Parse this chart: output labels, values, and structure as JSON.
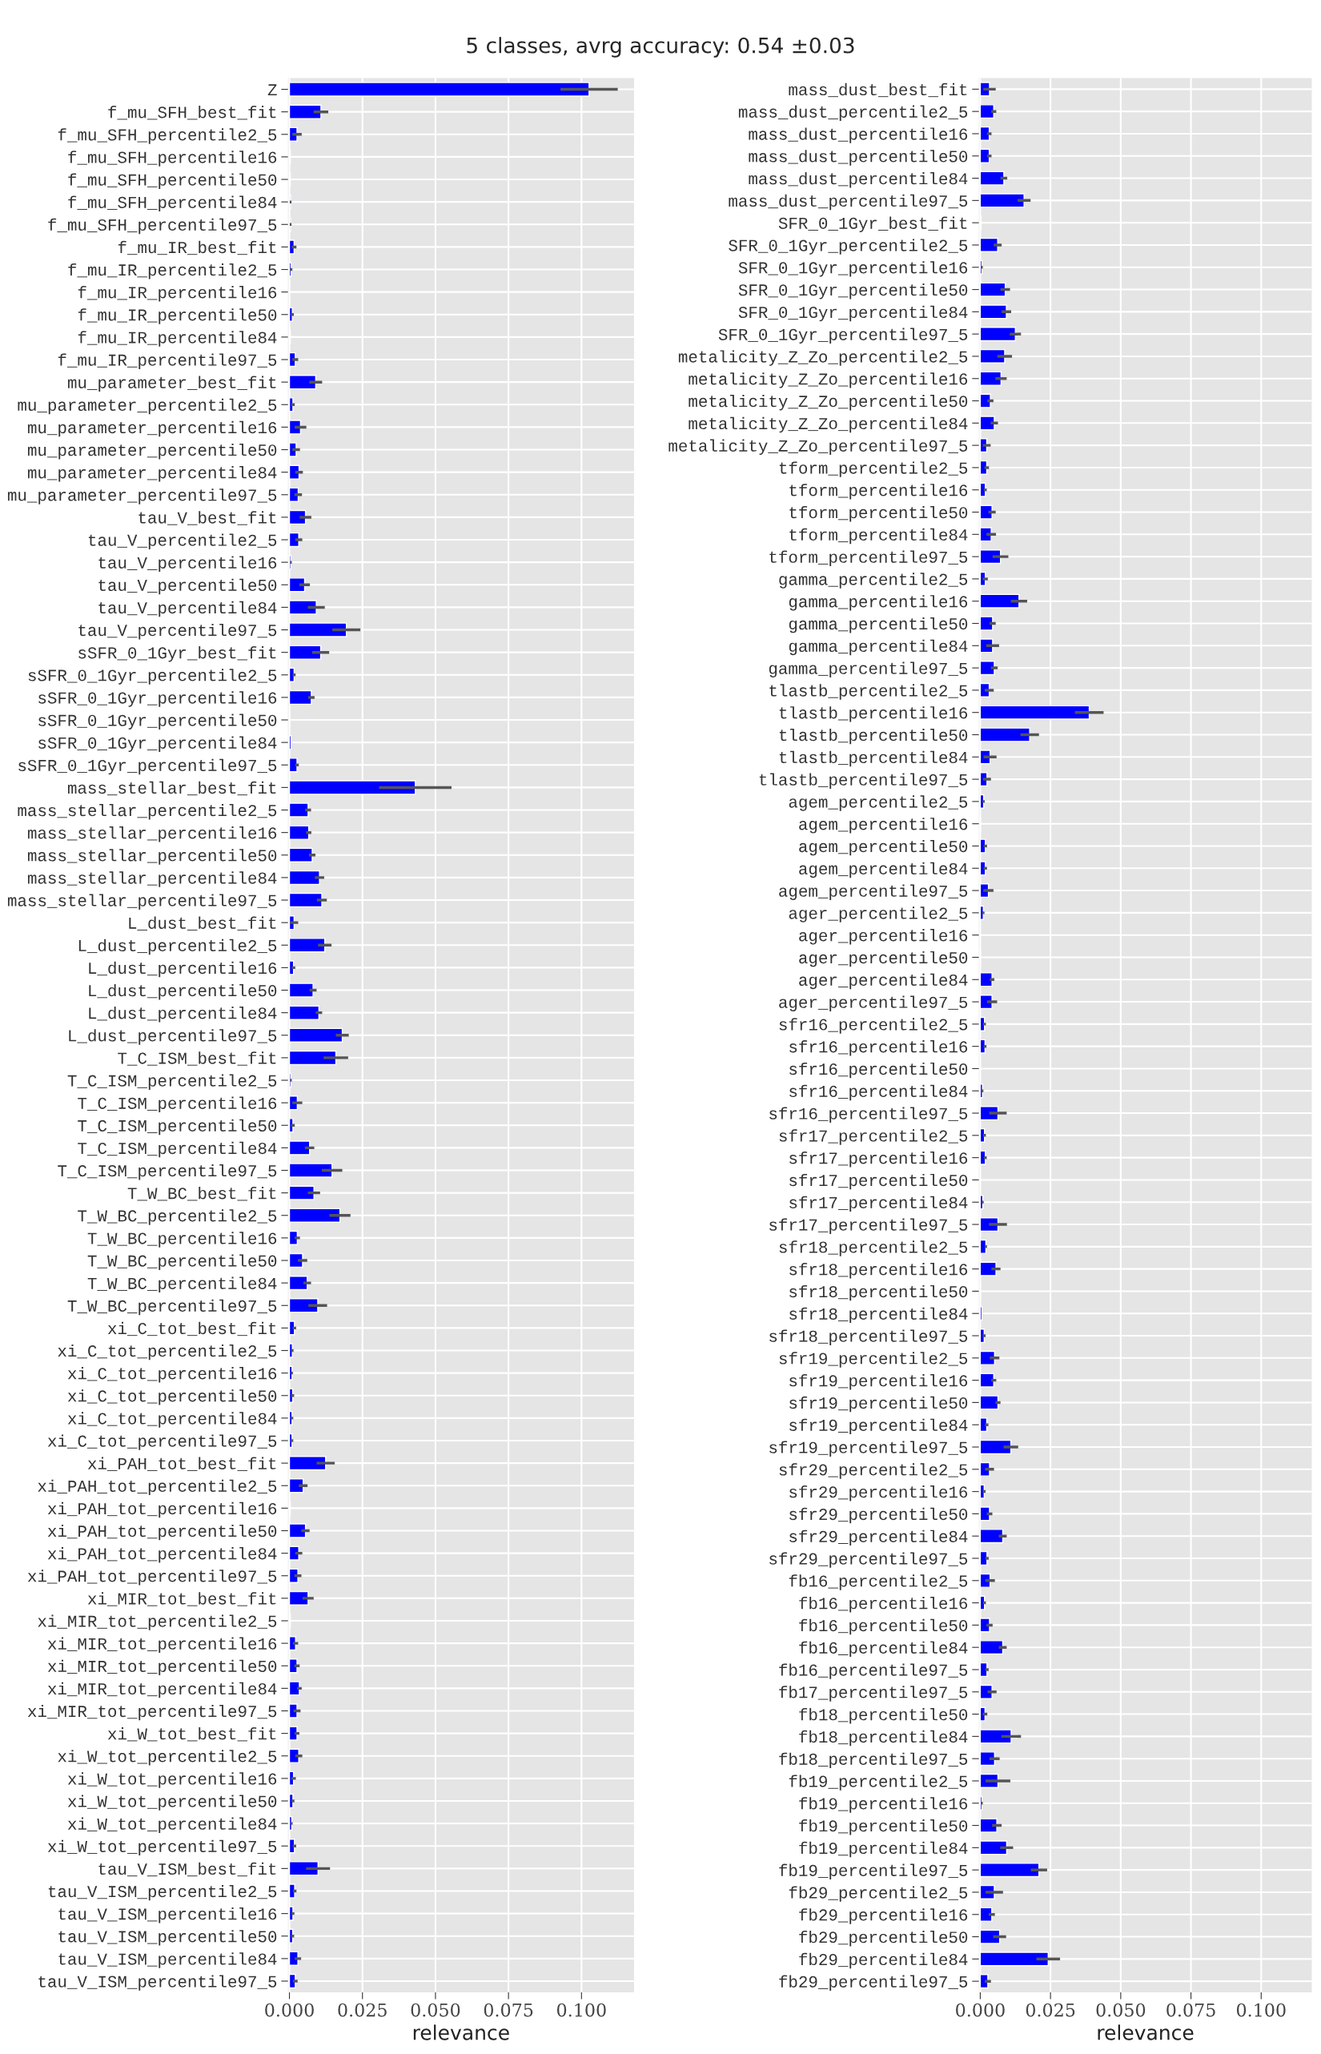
{
  "chart_data": [
    {
      "type": "bar",
      "orientation": "horizontal",
      "title": "5 classes, avrg accuracy: 0.54 ±0.03",
      "xlabel": "relevance",
      "color": "#0000ff",
      "grid": true,
      "xlim": [
        -0.0005,
        0.118
      ],
      "xticks": [
        {
          "value": 0,
          "label": "0.000"
        },
        {
          "value": 0.025,
          "label": "0.025"
        },
        {
          "value": 0.05,
          "label": "0.050"
        },
        {
          "value": 0.075,
          "label": "0.075"
        },
        {
          "value": 0.1,
          "label": "0.100"
        }
      ],
      "categories": [
        "Z",
        "f_mu_SFH_best_fit",
        "f_mu_SFH_percentile2_5",
        "f_mu_SFH_percentile16",
        "f_mu_SFH_percentile50",
        "f_mu_SFH_percentile84",
        "f_mu_SFH_percentile97_5",
        "f_mu_IR_best_fit",
        "f_mu_IR_percentile2_5",
        "f_mu_IR_percentile16",
        "f_mu_IR_percentile50",
        "f_mu_IR_percentile84",
        "f_mu_IR_percentile97_5",
        "mu_parameter_best_fit",
        "mu_parameter_percentile2_5",
        "mu_parameter_percentile16",
        "mu_parameter_percentile50",
        "mu_parameter_percentile84",
        "mu_parameter_percentile97_5",
        "tau_V_best_fit",
        "tau_V_percentile2_5",
        "tau_V_percentile16",
        "tau_V_percentile50",
        "tau_V_percentile84",
        "tau_V_percentile97_5",
        "sSFR_0_1Gyr_best_fit",
        "sSFR_0_1Gyr_percentile2_5",
        "sSFR_0_1Gyr_percentile16",
        "sSFR_0_1Gyr_percentile50",
        "sSFR_0_1Gyr_percentile84",
        "sSFR_0_1Gyr_percentile97_5",
        "mass_stellar_best_fit",
        "mass_stellar_percentile2_5",
        "mass_stellar_percentile16",
        "mass_stellar_percentile50",
        "mass_stellar_percentile84",
        "mass_stellar_percentile97_5",
        "L_dust_best_fit",
        "L_dust_percentile2_5",
        "L_dust_percentile16",
        "L_dust_percentile50",
        "L_dust_percentile84",
        "L_dust_percentile97_5",
        "T_C_ISM_best_fit",
        "T_C_ISM_percentile2_5",
        "T_C_ISM_percentile16",
        "T_C_ISM_percentile50",
        "T_C_ISM_percentile84",
        "T_C_ISM_percentile97_5",
        "T_W_BC_best_fit",
        "T_W_BC_percentile2_5",
        "T_W_BC_percentile16",
        "T_W_BC_percentile50",
        "T_W_BC_percentile84",
        "T_W_BC_percentile97_5",
        "xi_C_tot_best_fit",
        "xi_C_tot_percentile2_5",
        "xi_C_tot_percentile16",
        "xi_C_tot_percentile50",
        "xi_C_tot_percentile84",
        "xi_C_tot_percentile97_5",
        "xi_PAH_tot_best_fit",
        "xi_PAH_tot_percentile2_5",
        "xi_PAH_tot_percentile16",
        "xi_PAH_tot_percentile50",
        "xi_PAH_tot_percentile84",
        "xi_PAH_tot_percentile97_5",
        "xi_MIR_tot_best_fit",
        "xi_MIR_tot_percentile2_5",
        "xi_MIR_tot_percentile16",
        "xi_MIR_tot_percentile50",
        "xi_MIR_tot_percentile84",
        "xi_MIR_tot_percentile97_5",
        "xi_W_tot_best_fit",
        "xi_W_tot_percentile2_5",
        "xi_W_tot_percentile16",
        "xi_W_tot_percentile50",
        "xi_W_tot_percentile84",
        "xi_W_tot_percentile97_5",
        "tau_V_ISM_best_fit",
        "tau_V_ISM_percentile2_5",
        "tau_V_ISM_percentile16",
        "tau_V_ISM_percentile50",
        "tau_V_ISM_percentile84",
        "tau_V_ISM_percentile97_5"
      ],
      "values": [
        0.1026,
        0.0108,
        0.0026,
        0.0003,
        0.0003,
        0.0004,
        0.0004,
        0.0016,
        0.0006,
        null,
        0.001,
        0.0003,
        0.002,
        0.009,
        0.0012,
        0.0038,
        0.0023,
        0.0033,
        0.003,
        0.0055,
        0.0032,
        0.0005,
        0.0052,
        0.0092,
        0.0195,
        0.0107,
        0.0016,
        0.0075,
        0.0002,
        0.0006,
        0.0026,
        0.0431,
        0.0064,
        0.0066,
        0.0078,
        0.0103,
        0.0111,
        0.0016,
        0.0121,
        0.0014,
        0.0081,
        0.0101,
        0.0181,
        0.0159,
        0.0005,
        0.0027,
        0.0012,
        0.0069,
        0.0146,
        0.0084,
        0.0173,
        0.0027,
        0.0045,
        0.0061,
        0.0097,
        0.0017,
        0.001,
        0.0009,
        0.0011,
        0.0009,
        0.0009,
        0.0124,
        0.0047,
        0.0003,
        0.0055,
        0.0032,
        0.0029,
        0.0064,
        0.0003,
        0.0021,
        0.0026,
        0.0034,
        0.0026,
        0.0026,
        0.0032,
        0.0014,
        0.0012,
        0.0008,
        0.0017,
        0.0098,
        0.0018,
        0.0012,
        0.0011,
        0.0029,
        0.002
      ],
      "errors": [
        0.0098,
        0.0025,
        0.0016,
        null,
        null,
        0.0003,
        0.0003,
        0.0008,
        0.0004,
        null,
        0.0005,
        null,
        0.001,
        0.0022,
        0.0006,
        0.002,
        0.0013,
        0.0013,
        0.0013,
        0.002,
        0.0012,
        0.0003,
        0.0018,
        0.0029,
        0.0048,
        0.0029,
        0.0005,
        0.0011,
        null,
        null,
        0.0006,
        0.0124,
        0.001,
        0.0009,
        0.0011,
        0.0016,
        0.0017,
        0.0014,
        0.0023,
        0.0006,
        0.0012,
        0.0011,
        0.0022,
        0.0042,
        0.0003,
        0.0017,
        0.0006,
        0.0016,
        0.0035,
        0.0021,
        0.0036,
        0.0009,
        0.0016,
        0.0013,
        0.0032,
        0.0006,
        0.0004,
        0.0003,
        0.0005,
        0.0004,
        0.0004,
        0.0031,
        0.0015,
        null,
        0.0014,
        0.0012,
        0.0012,
        0.0019,
        null,
        0.0009,
        0.0009,
        0.0008,
        0.0012,
        0.0008,
        0.0012,
        0.0008,
        0.0005,
        0.0003,
        0.0006,
        0.0041,
        0.0006,
        0.0005,
        0.0005,
        0.0011,
        0.0008
      ]
    },
    {
      "type": "bar",
      "orientation": "horizontal",
      "xlabel": "relevance",
      "color": "#0000ff",
      "grid": true,
      "xlim": [
        -0.0005,
        0.118
      ],
      "xticks": [
        {
          "value": 0,
          "label": "0.000"
        },
        {
          "value": 0.025,
          "label": "0.025"
        },
        {
          "value": 0.05,
          "label": "0.050"
        },
        {
          "value": 0.075,
          "label": "0.075"
        },
        {
          "value": 0.1,
          "label": "0.100"
        }
      ],
      "categories": [
        "mass_dust_best_fit",
        "mass_dust_percentile2_5",
        "mass_dust_percentile16",
        "mass_dust_percentile50",
        "mass_dust_percentile84",
        "mass_dust_percentile97_5",
        "SFR_0_1Gyr_best_fit",
        "SFR_0_1Gyr_percentile2_5",
        "SFR_0_1Gyr_percentile16",
        "SFR_0_1Gyr_percentile50",
        "SFR_0_1Gyr_percentile84",
        "SFR_0_1Gyr_percentile97_5",
        "metalicity_Z_Zo_percentile2_5",
        "metalicity_Z_Zo_percentile16",
        "metalicity_Z_Zo_percentile50",
        "metalicity_Z_Zo_percentile84",
        "metalicity_Z_Zo_percentile97_5",
        "tform_percentile2_5",
        "tform_percentile16",
        "tform_percentile50",
        "tform_percentile84",
        "tform_percentile97_5",
        "gamma_percentile2_5",
        "gamma_percentile16",
        "gamma_percentile50",
        "gamma_percentile84",
        "gamma_percentile97_5",
        "tlastb_percentile2_5",
        "tlastb_percentile16",
        "tlastb_percentile50",
        "tlastb_percentile84",
        "tlastb_percentile97_5",
        "agem_percentile2_5",
        "agem_percentile16",
        "agem_percentile50",
        "agem_percentile84",
        "agem_percentile97_5",
        "ager_percentile2_5",
        "ager_percentile16",
        "ager_percentile50",
        "ager_percentile84",
        "ager_percentile97_5",
        "sfr16_percentile2_5",
        "sfr16_percentile16",
        "sfr16_percentile50",
        "sfr16_percentile84",
        "sfr16_percentile97_5",
        "sfr17_percentile2_5",
        "sfr17_percentile16",
        "sfr17_percentile50",
        "sfr17_percentile84",
        "sfr17_percentile97_5",
        "sfr18_percentile2_5",
        "sfr18_percentile16",
        "sfr18_percentile50",
        "sfr18_percentile84",
        "sfr18_percentile97_5",
        "sfr19_percentile2_5",
        "sfr19_percentile16",
        "sfr19_percentile50",
        "sfr19_percentile84",
        "sfr19_percentile97_5",
        "sfr29_percentile2_5",
        "sfr29_percentile16",
        "sfr29_percentile50",
        "sfr29_percentile84",
        "sfr29_percentile97_5",
        "fb16_percentile2_5",
        "fb16_percentile16",
        "fb16_percentile50",
        "fb16_percentile84",
        "fb16_percentile97_5",
        "fb17_percentile97_5",
        "fb18_percentile50",
        "fb18_percentile84",
        "fb18_percentile97_5",
        "fb19_percentile2_5",
        "fb19_percentile16",
        "fb19_percentile50",
        "fb19_percentile84",
        "fb19_percentile97_5",
        "fb29_percentile2_5",
        "fb29_percentile16",
        "fb29_percentile50",
        "fb29_percentile84",
        "fb29_percentile97_5"
      ],
      "values": [
        0.0033,
        0.0048,
        0.0032,
        0.0032,
        0.0084,
        0.0156,
        0.0003,
        0.0062,
        0.0006,
        0.0089,
        0.0093,
        0.0125,
        0.0087,
        0.0074,
        0.0036,
        0.005,
        0.0023,
        0.0023,
        0.0018,
        0.0042,
        0.0039,
        0.0072,
        0.0018,
        0.0138,
        0.0044,
        0.0044,
        0.005,
        0.0032,
        0.0388,
        0.0176,
        0.0035,
        0.0024,
        0.0012,
        0.0002,
        0.0018,
        0.0018,
        0.0029,
        0.0011,
        null,
        0.0002,
        0.0042,
        0.0042,
        0.0015,
        0.0017,
        null,
        0.0008,
        0.0063,
        0.0015,
        0.0018,
        null,
        0.0009,
        0.0063,
        0.002,
        0.0056,
        0.0002,
        0.0006,
        0.0014,
        0.0051,
        0.0048,
        0.0063,
        0.0023,
        0.0109,
        0.0033,
        0.0014,
        0.0033,
        0.008,
        0.0024,
        0.0035,
        0.0015,
        0.0033,
        0.008,
        0.0024,
        0.0042,
        0.0017,
        0.011,
        0.0051,
        0.0063,
        0.0006,
        0.0059,
        0.0094,
        0.0209,
        0.005,
        0.0041,
        0.0069,
        0.0242,
        0.0027
      ],
      "errors": [
        0.0022,
        0.0009,
        0.0008,
        0.0008,
        0.0012,
        0.0023,
        null,
        0.0014,
        0.0003,
        0.0017,
        0.0017,
        0.002,
        0.0026,
        0.002,
        0.0011,
        0.0013,
        0.0014,
        0.0008,
        0.0005,
        0.0013,
        0.0017,
        0.0028,
        0.0009,
        0.0029,
        0.0011,
        0.0023,
        0.0012,
        0.0016,
        0.0051,
        0.0033,
        0.0023,
        0.0014,
        0.0004,
        null,
        0.0006,
        0.0006,
        0.0018,
        0.0004,
        null,
        null,
        0.0008,
        0.0018,
        0.0005,
        0.0005,
        null,
        0.0003,
        0.0031,
        0.0005,
        0.0005,
        null,
        0.0003,
        0.0032,
        0.0004,
        0.0016,
        null,
        null,
        0.0005,
        0.0017,
        0.0009,
        0.0009,
        0.0006,
        0.0026,
        0.0016,
        0.0005,
        0.001,
        0.0014,
        0.0006,
        0.0017,
        0.0005,
        0.0011,
        0.0014,
        0.0006,
        0.0016,
        0.0008,
        0.0035,
        0.0018,
        0.0044,
        0.0003,
        0.0017,
        0.0023,
        0.0029,
        0.0031,
        0.0011,
        0.0023,
        0.0042,
        0.0011
      ]
    }
  ]
}
